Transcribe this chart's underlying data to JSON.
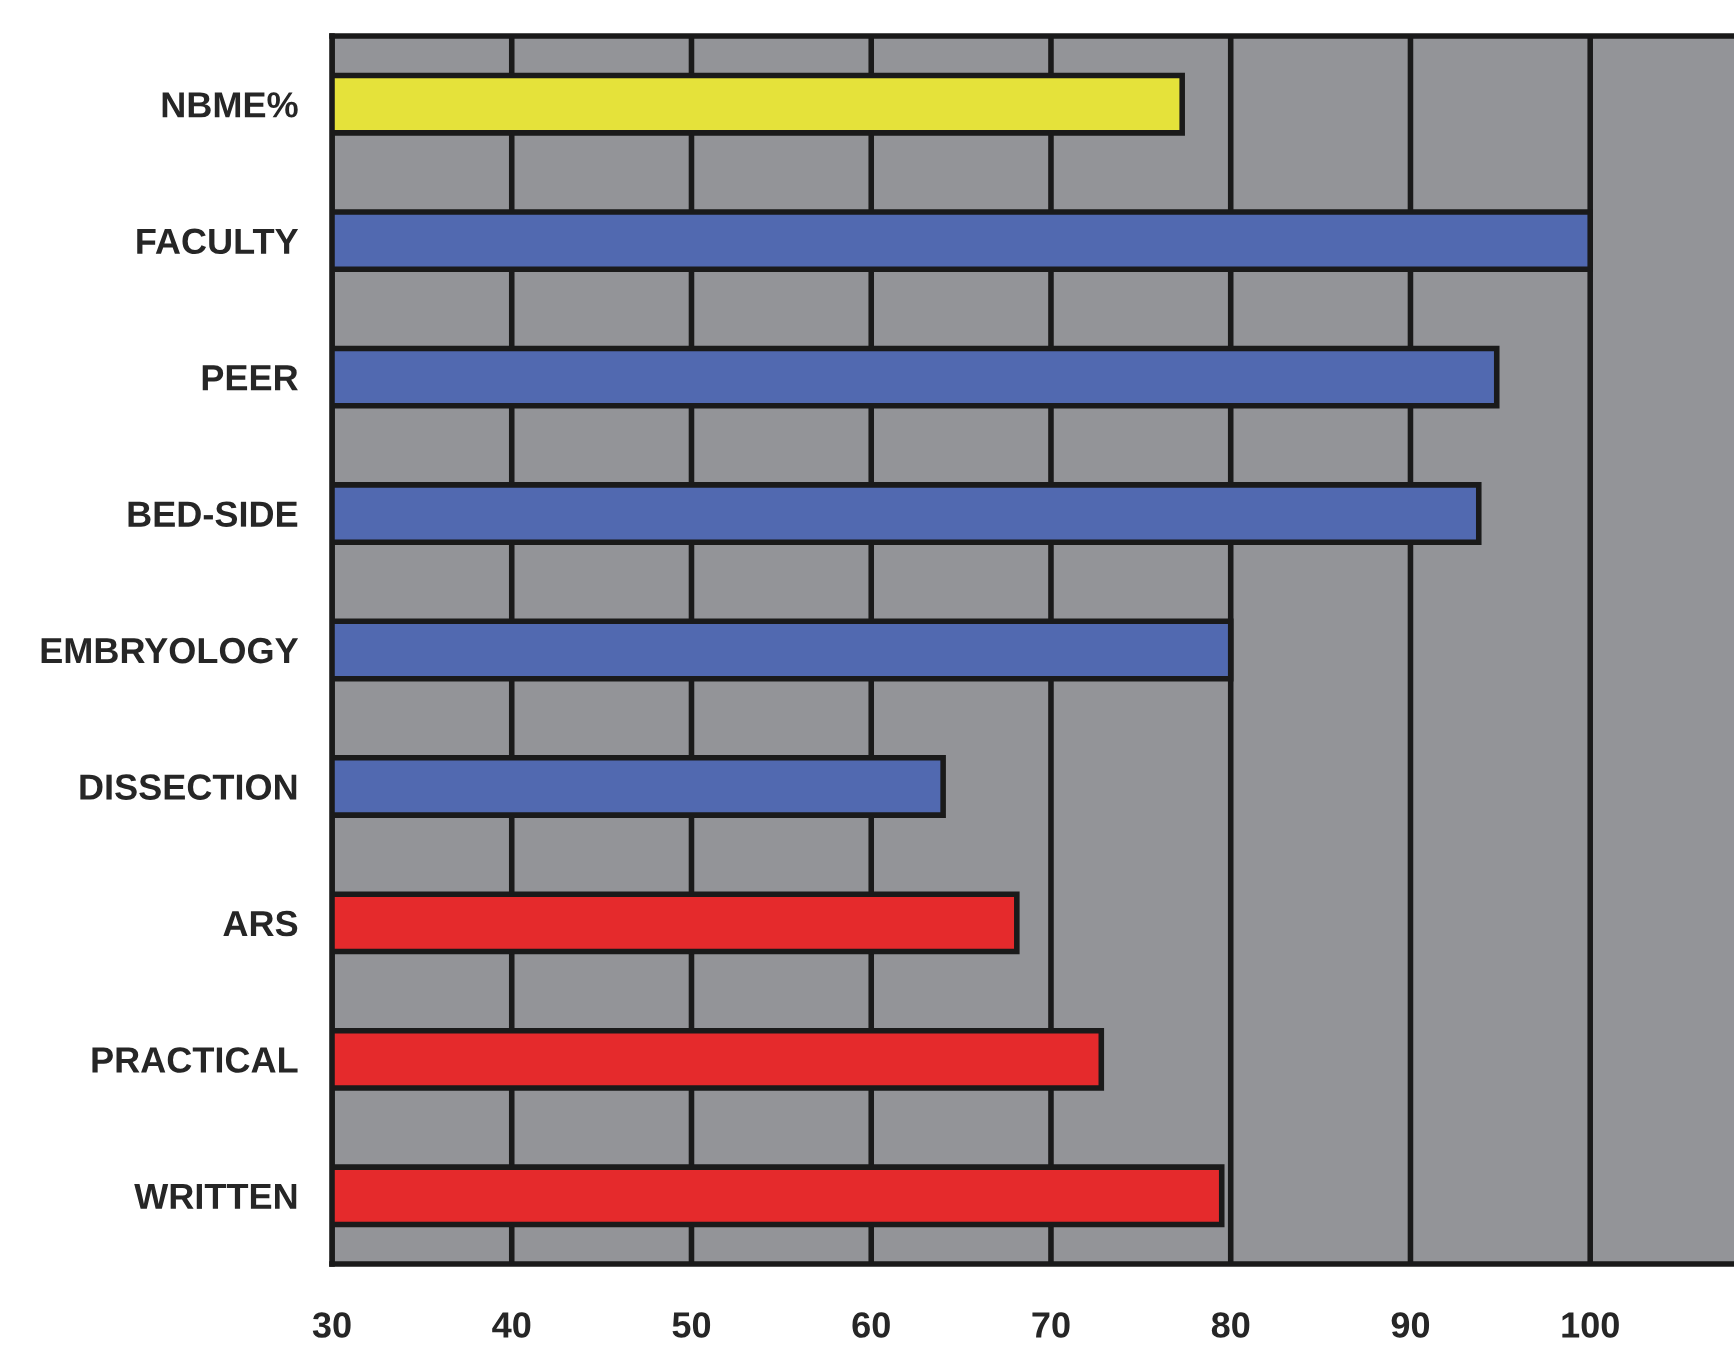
{
  "chart_data": {
    "type": "bar",
    "orientation": "horizontal",
    "categories": [
      "NBME%",
      "FACULTY",
      "PEER",
      "BED-SIDE",
      "EMBRYOLOGY",
      "DISSECTION",
      "ARS",
      "PRACTICAL",
      "WRITTEN"
    ],
    "values": [
      77.3,
      100,
      94.8,
      93.8,
      80,
      64,
      68.1,
      72.8,
      79.5
    ],
    "colors": [
      "#e5e23a",
      "#5169b0",
      "#5169b0",
      "#5169b0",
      "#5169b0",
      "#5169b0",
      "#e52a2c",
      "#e52a2c",
      "#e52a2c"
    ],
    "xlim": [
      30,
      108
    ],
    "xticks": [
      30,
      40,
      50,
      60,
      70,
      80,
      90,
      100
    ],
    "grid": "x",
    "legend": false
  }
}
